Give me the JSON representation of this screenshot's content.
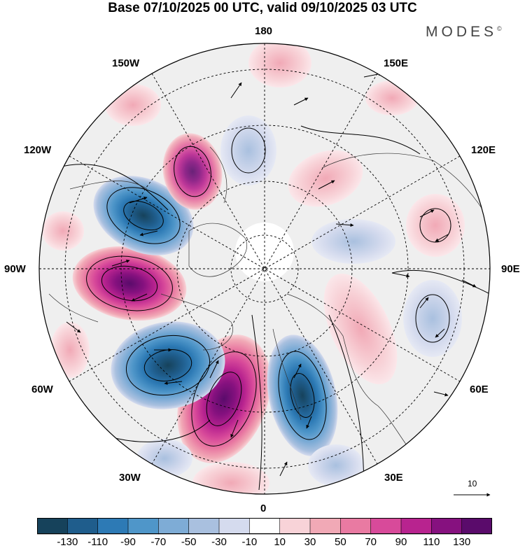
{
  "header": {
    "title": "Base 07/10/2025 00 UTC, valid 09/10/2025 03 UTC",
    "brand": "MODES",
    "brand_mark": "©"
  },
  "map": {
    "projection": "north-polar-stereographic",
    "longitude_labels": {
      "top": "180",
      "bottom": "0",
      "left": "90W",
      "right": "90E",
      "upper_left_1": "150W",
      "upper_left_2": "120W",
      "upper_right_1": "150E",
      "upper_right_2": "120E",
      "lower_left_1": "60W",
      "lower_left_2": "30W",
      "lower_right_1": "60E",
      "lower_right_2": "30E"
    },
    "reference_vector_label": "10"
  },
  "colorbar": {
    "labels": [
      "-130",
      "-110",
      "-90",
      "-70",
      "-50",
      "-30",
      "-10",
      "10",
      "30",
      "50",
      "70",
      "90",
      "110",
      "130"
    ],
    "colors": [
      "#16425b",
      "#1f5d8c",
      "#2d7ab5",
      "#4f96c9",
      "#7eacd6",
      "#a9c0df",
      "#d5dbee",
      "#ffffff",
      "#f8d3d8",
      "#f1a9b6",
      "#e97aa2",
      "#d84a9a",
      "#b8238f",
      "#86117f",
      "#5a0b6b"
    ]
  }
}
